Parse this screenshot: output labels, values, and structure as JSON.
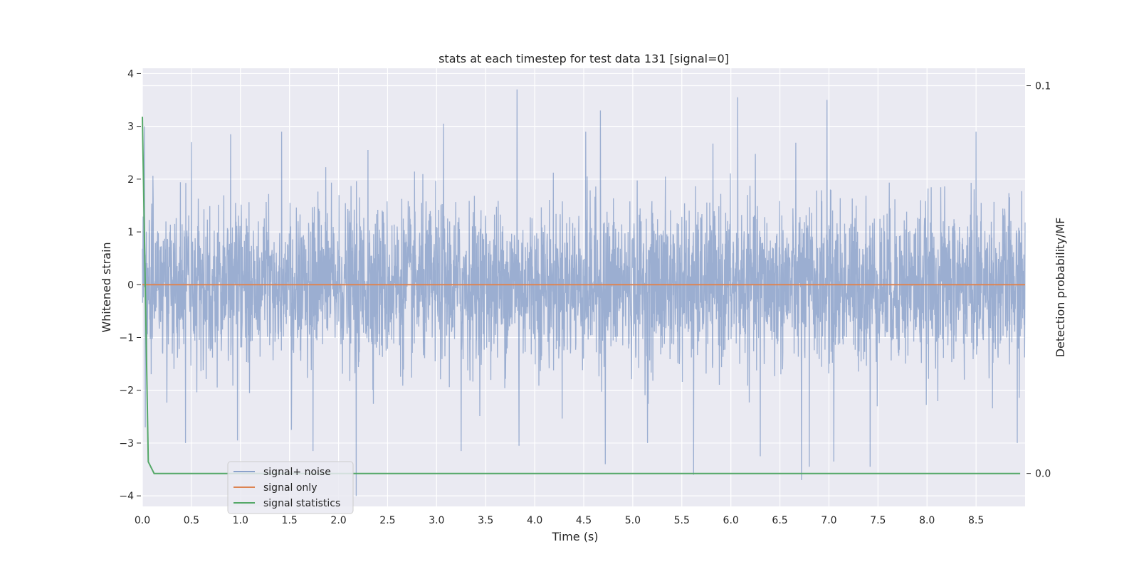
{
  "chart_data": {
    "type": "line",
    "title": "stats at each timestep for test data 131 [signal=0]",
    "xlabel": "Time (s)",
    "ylabel": "Whitened strain",
    "ylabel_right": "Detection probability/MF",
    "xlim": [
      0.0,
      9.0
    ],
    "ylim": [
      -4.2,
      4.1
    ],
    "ylim_right": [
      -0.0085,
      0.1045
    ],
    "x_ticks": [
      "0.0",
      "0.5",
      "1.0",
      "1.5",
      "2.0",
      "2.5",
      "3.0",
      "3.5",
      "4.0",
      "4.5",
      "5.0",
      "5.5",
      "6.0",
      "6.5",
      "7.0",
      "7.5",
      "8.0",
      "8.5"
    ],
    "y_ticks": [
      "−4",
      "−3",
      "−2",
      "−1",
      "0",
      "1",
      "2",
      "3",
      "4"
    ],
    "y_ticks_right": [
      "0.0",
      "0.1"
    ],
    "grid": true,
    "legend_position": "lower-left",
    "noise_amplitude": 0.75,
    "noise_peak_samples": [
      {
        "x": 0.02,
        "y": 3.0
      },
      {
        "x": 0.03,
        "y": -2.7
      },
      {
        "x": 0.5,
        "y": 2.7
      },
      {
        "x": 0.44,
        "y": -3.0
      },
      {
        "x": 0.9,
        "y": 2.85
      },
      {
        "x": 0.97,
        "y": -2.95
      },
      {
        "x": 1.42,
        "y": 2.9
      },
      {
        "x": 1.52,
        "y": -2.75
      },
      {
        "x": 1.74,
        "y": -3.15
      },
      {
        "x": 2.18,
        "y": -4.0
      },
      {
        "x": 2.3,
        "y": 2.55
      },
      {
        "x": 3.07,
        "y": 3.05
      },
      {
        "x": 3.25,
        "y": -3.15
      },
      {
        "x": 3.82,
        "y": 3.7
      },
      {
        "x": 3.84,
        "y": -3.05
      },
      {
        "x": 4.52,
        "y": 2.9
      },
      {
        "x": 4.67,
        "y": 3.3
      },
      {
        "x": 4.72,
        "y": -3.4
      },
      {
        "x": 5.15,
        "y": -3.0
      },
      {
        "x": 5.62,
        "y": -3.6
      },
      {
        "x": 6.07,
        "y": 3.55
      },
      {
        "x": 6.3,
        "y": -3.25
      },
      {
        "x": 6.72,
        "y": -3.7
      },
      {
        "x": 6.8,
        "y": -3.45
      },
      {
        "x": 6.98,
        "y": 3.5
      },
      {
        "x": 7.05,
        "y": -3.35
      },
      {
        "x": 7.42,
        "y": -3.45
      },
      {
        "x": 8.5,
        "y": 2.9
      },
      {
        "x": 8.92,
        "y": -3.0
      }
    ],
    "series": [
      {
        "name": "signal+ noise",
        "color": "#4c72b0",
        "axis": "left"
      },
      {
        "name": "signal only",
        "color": "#dd8452",
        "axis": "left",
        "x": [
          0.0,
          9.0
        ],
        "y": [
          0.0,
          0.0
        ]
      },
      {
        "name": "signal statistics",
        "color": "#55a868",
        "axis": "right",
        "x": [
          0.0,
          0.06,
          0.12,
          8.95
        ],
        "y": [
          0.092,
          0.003,
          0.0,
          0.0
        ]
      }
    ]
  }
}
